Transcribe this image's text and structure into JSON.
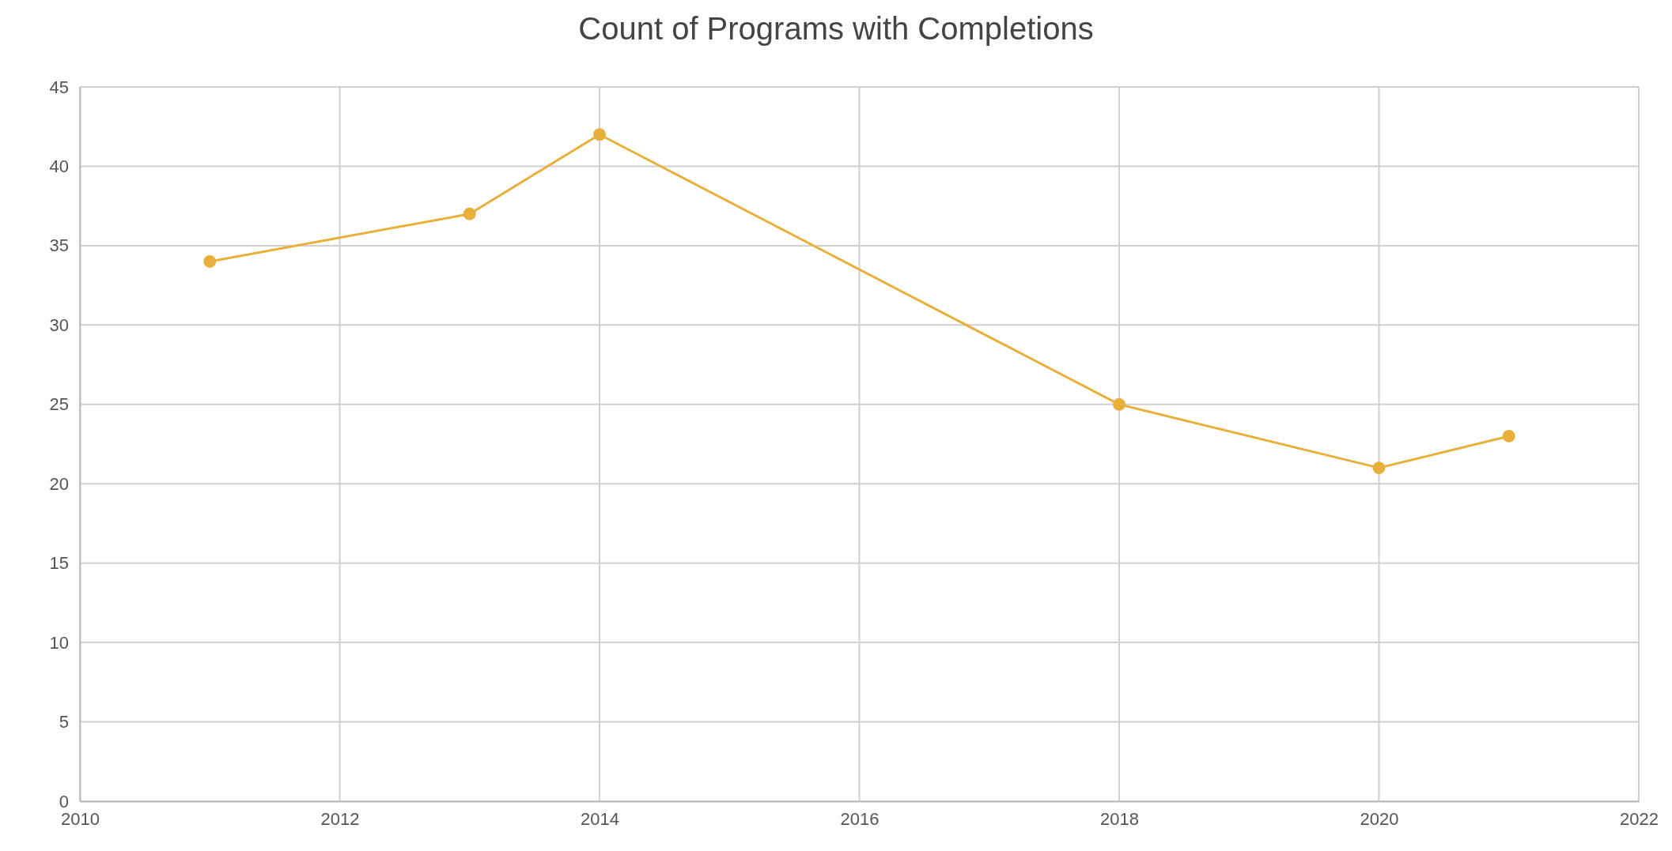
{
  "chart_data": {
    "type": "line",
    "title": "Count of Programs with Completions",
    "x": [
      2011,
      2013,
      2014,
      2018,
      2020,
      2021
    ],
    "series": [
      {
        "color": "#e8b03a",
        "values": [
          34,
          37,
          42,
          25,
          21,
          23
        ]
      }
    ],
    "xlim": [
      2010,
      2022
    ],
    "xticks": [
      2010,
      2012,
      2014,
      2016,
      2018,
      2020,
      2022
    ],
    "ylim": [
      0,
      45
    ],
    "yticks": [
      0,
      5,
      10,
      15,
      20,
      25,
      30,
      35,
      40,
      45
    ],
    "grid": true,
    "marker": "circle",
    "line_style": "solid"
  }
}
